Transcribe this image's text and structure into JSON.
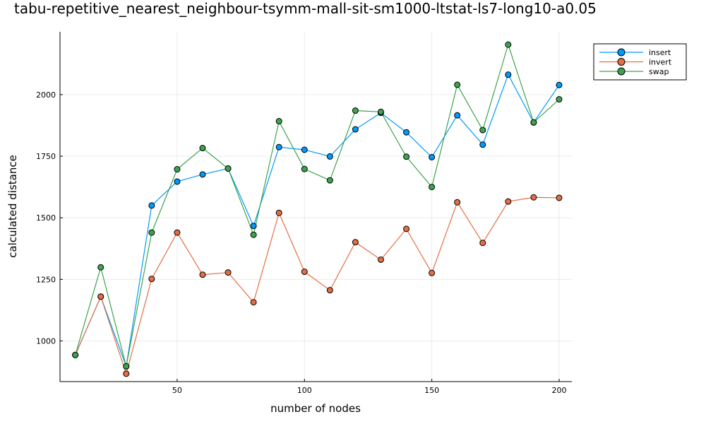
{
  "chart_data": {
    "type": "line",
    "title": "tabu-repetitive_nearest_neighbour-tsymm-mall-sit-sm1000-ltstat-ls7-long10-a0.05",
    "xlabel": "number of nodes",
    "ylabel": "calculated distance",
    "x": [
      10,
      20,
      30,
      40,
      50,
      60,
      70,
      80,
      90,
      100,
      110,
      120,
      130,
      140,
      150,
      160,
      170,
      180,
      190,
      200
    ],
    "xlim": [
      4,
      205
    ],
    "ylim": [
      835,
      2255
    ],
    "xticks": [
      50,
      100,
      150,
      200
    ],
    "yticks": [
      1000,
      1250,
      1500,
      1750,
      2000
    ],
    "grid": true,
    "legend_position": "top-right",
    "series": [
      {
        "name": "insert",
        "color": "#009AF9",
        "values": [
          943,
          1180,
          897,
          1550,
          1647,
          1676,
          1700,
          1467,
          1787,
          1776,
          1749,
          1859,
          1926,
          1847,
          1746,
          1916,
          1797,
          2081,
          1887,
          2039
        ]
      },
      {
        "name": "invert",
        "color": "#E26F46",
        "values": [
          943,
          1180,
          867,
          1252,
          1440,
          1269,
          1278,
          1157,
          1520,
          1281,
          1206,
          1401,
          1330,
          1455,
          1276,
          1563,
          1398,
          1566,
          1583,
          1581
        ]
      },
      {
        "name": "swap",
        "color": "#3DA44D",
        "values": [
          943,
          1299,
          897,
          1440,
          1697,
          1783,
          1700,
          1431,
          1892,
          1698,
          1652,
          1935,
          1930,
          1748,
          1625,
          2040,
          1856,
          2203,
          1887,
          1981
        ]
      }
    ]
  }
}
